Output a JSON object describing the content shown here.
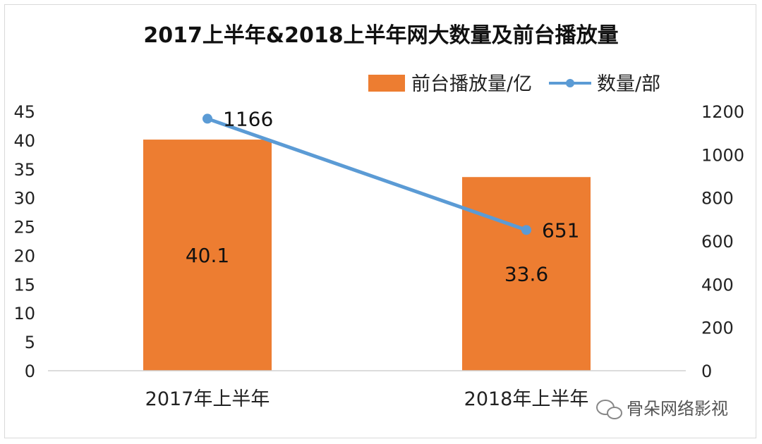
{
  "chart_data": {
    "type": "bar+line",
    "title": "2017上半年&2018上半年网大数量及前台播放量",
    "categories": [
      "2017年上半年",
      "2018年上半年"
    ],
    "series": [
      {
        "name": "前台播放量/亿",
        "type": "bar",
        "axis": "left",
        "color": "#ED7D31",
        "values": [
          40.1,
          33.6
        ],
        "labels": [
          "40.1",
          "33.6"
        ]
      },
      {
        "name": "数量/部",
        "type": "line",
        "axis": "right",
        "color": "#5B9BD5",
        "values": [
          1166,
          651
        ],
        "labels": [
          "1166",
          "651"
        ]
      }
    ],
    "y_left": {
      "min": 0,
      "max": 45,
      "ticks": [
        0,
        5,
        10,
        15,
        20,
        25,
        30,
        35,
        40,
        45
      ]
    },
    "y_right": {
      "min": 0,
      "max": 1200,
      "ticks": [
        0,
        200,
        400,
        600,
        800,
        1000,
        1200
      ]
    },
    "legend_position": "top-right",
    "grid": false
  },
  "watermark": {
    "icon": "wechat-icon",
    "text": "骨朵网络影视"
  }
}
